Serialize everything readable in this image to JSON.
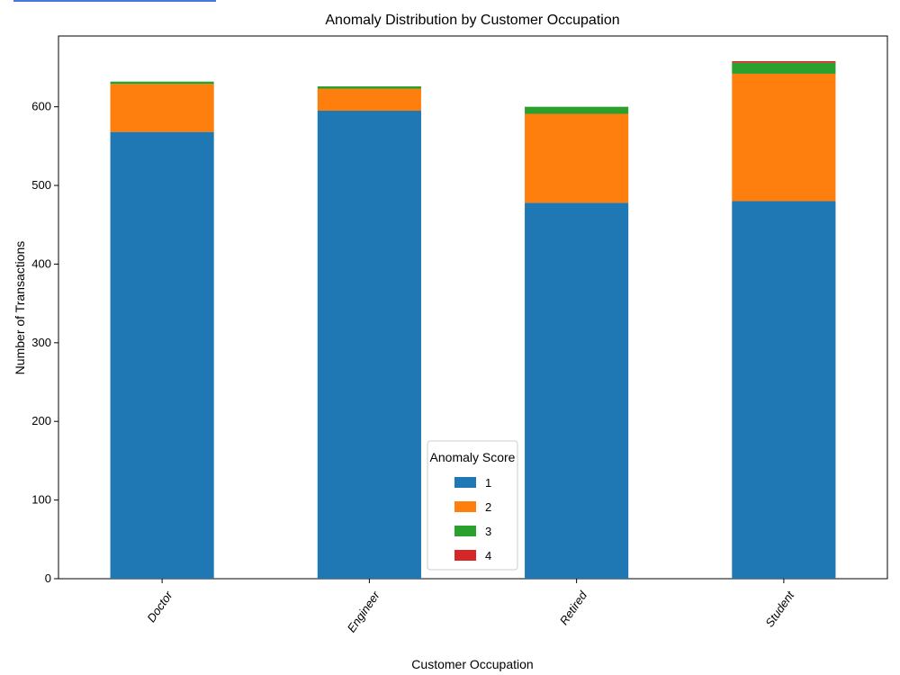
{
  "chart_data": {
    "type": "bar",
    "stacked": true,
    "title": "Anomaly Distribution by Customer Occupation",
    "xlabel": "Customer Occupation",
    "ylabel": "Number of Transactions",
    "categories": [
      "Doctor",
      "Engineer",
      "Retired",
      "Student"
    ],
    "ylim": [
      0,
      690
    ],
    "yticks": [
      0,
      100,
      200,
      300,
      400,
      500,
      600
    ],
    "grid": false,
    "legend": {
      "title": "Anomaly Score",
      "placement": "bottom-center"
    },
    "series": [
      {
        "name": "1",
        "color": "#1f77b4",
        "values": [
          568,
          595,
          478,
          480
        ]
      },
      {
        "name": "2",
        "color": "#ff7f0e",
        "values": [
          61,
          28,
          113,
          162
        ]
      },
      {
        "name": "3",
        "color": "#2ca02c",
        "values": [
          3,
          3,
          9,
          14
        ]
      },
      {
        "name": "4",
        "color": "#d62728",
        "values": [
          0,
          0,
          0,
          2
        ]
      }
    ]
  }
}
